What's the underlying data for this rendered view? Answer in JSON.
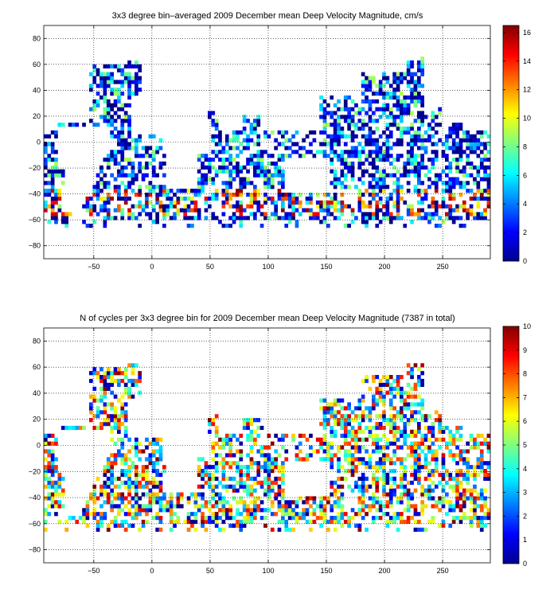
{
  "chart_data": [
    {
      "type": "heatmap",
      "title": "3x3 degree bin–averaged 2009 December mean Deep Velocity Magnitude, cm/s",
      "xlabel": "",
      "ylabel": "",
      "xlim": [
        -93,
        291
      ],
      "ylim": [
        -90,
        90
      ],
      "xticks": [
        -50,
        0,
        50,
        100,
        150,
        200,
        250
      ],
      "yticks": [
        -80,
        -60,
        -40,
        -20,
        0,
        20,
        40,
        60,
        80
      ],
      "grid": true,
      "bin_size_deg": 3,
      "colormap": "jet",
      "colorbar": {
        "min": 0,
        "max": 16.5,
        "ticks": [
          0,
          2,
          4,
          6,
          8,
          10,
          12,
          14,
          16
        ]
      }
    },
    {
      "type": "heatmap",
      "title": "N of cycles per 3x3 degree bin for 2009 December mean Deep Velocity Magnitude (7387 in total)",
      "xlabel": "",
      "ylabel": "",
      "xlim": [
        -93,
        291
      ],
      "ylim": [
        -90,
        90
      ],
      "xticks": [
        -50,
        0,
        50,
        100,
        150,
        200,
        250
      ],
      "yticks": [
        -80,
        -60,
        -40,
        -20,
        0,
        20,
        40,
        60,
        80
      ],
      "grid": true,
      "bin_size_deg": 3,
      "colormap": "jet",
      "colorbar": {
        "min": 0,
        "max": 10,
        "ticks": [
          0,
          1,
          2,
          3,
          4,
          5,
          6,
          7,
          8,
          9,
          10
        ]
      }
    }
  ]
}
